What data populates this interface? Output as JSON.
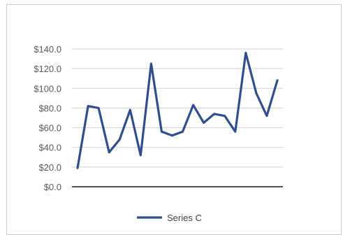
{
  "chart_data": {
    "type": "line",
    "title": "",
    "xlabel": "",
    "ylabel": "",
    "ylim": [
      0,
      140
    ],
    "y_ticks": [
      "$0.0",
      "$20.0",
      "$40.0",
      "$60.0",
      "$80.0",
      "$100.0",
      "$120.0",
      "$140.0"
    ],
    "grid": true,
    "legend": "bottom",
    "series": [
      {
        "name": "Series C",
        "color": "#2e4e8f",
        "values": [
          19,
          82,
          80,
          35,
          48,
          78,
          32,
          125,
          56,
          52,
          56,
          83,
          65,
          74,
          72,
          56,
          136,
          95,
          72,
          108
        ]
      }
    ]
  }
}
